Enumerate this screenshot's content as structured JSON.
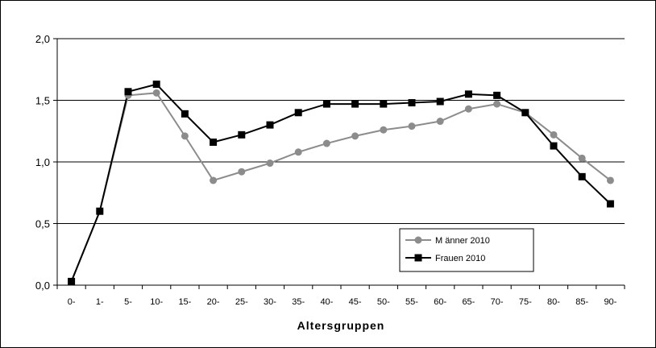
{
  "chart_data": {
    "type": "line",
    "title": "",
    "xlabel": "Altersgruppen",
    "ylabel": "",
    "categories": [
      "0-",
      "1-",
      "5-",
      "10-",
      "15-",
      "20-",
      "25-",
      "30-",
      "35-",
      "40-",
      "45-",
      "50-",
      "55-",
      "60-",
      "65-",
      "70-",
      "75-",
      "80-",
      "85-",
      "90-"
    ],
    "ylim": [
      0,
      2
    ],
    "yticks": [
      "0,0",
      "0,5",
      "1,0",
      "1,5",
      "2,0"
    ],
    "grid": "horizontal",
    "legend_position": "bottom-right",
    "series": [
      {
        "name": "M änner 2010",
        "color": "#8c8c8c",
        "marker": "circle",
        "values": [
          0.03,
          0.6,
          1.54,
          1.56,
          1.21,
          0.85,
          0.92,
          0.99,
          1.08,
          1.15,
          1.21,
          1.26,
          1.29,
          1.33,
          1.43,
          1.47,
          1.4,
          1.22,
          1.03,
          0.85
        ]
      },
      {
        "name": "Frauen 2010",
        "color": "#000000",
        "marker": "square",
        "values": [
          0.03,
          0.6,
          1.57,
          1.63,
          1.39,
          1.16,
          1.22,
          1.3,
          1.4,
          1.47,
          1.47,
          1.47,
          1.48,
          1.49,
          1.55,
          1.54,
          1.4,
          1.13,
          0.88,
          0.66
        ]
      }
    ]
  }
}
